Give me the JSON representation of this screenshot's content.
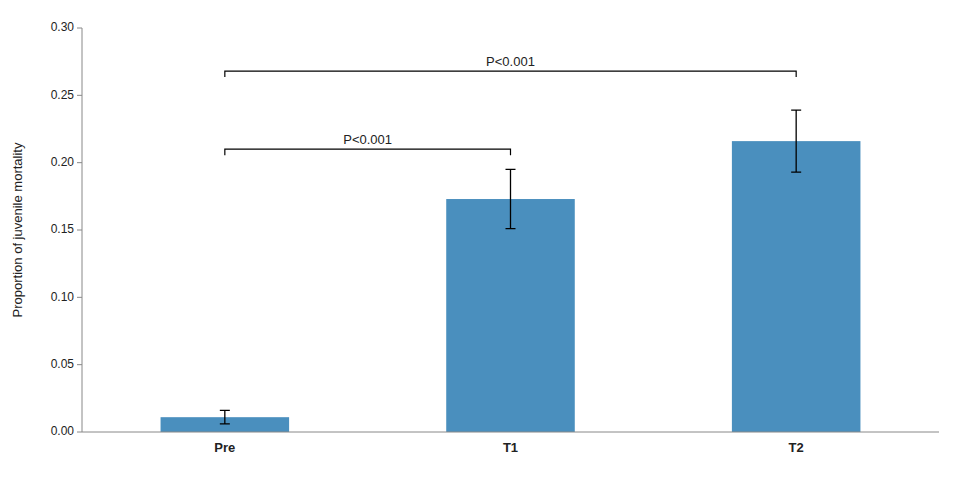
{
  "chart_data": {
    "type": "bar",
    "categories": [
      "Pre",
      "T1",
      "T2"
    ],
    "values": [
      0.011,
      0.173,
      0.216
    ],
    "errors": [
      0.005,
      0.022,
      0.023
    ],
    "color": "#4a8fbe",
    "ylabel": "Proportion of juvenile mortality",
    "ylim": [
      0,
      0.3
    ],
    "yticks": [
      {
        "value": 0,
        "label": "0.00"
      },
      0.05,
      {
        "value": 0.1,
        "label": "0.10"
      },
      0.15,
      {
        "value": 0.2,
        "label": "0.20"
      },
      0.25,
      {
        "value": 0.3,
        "label": "0.30"
      }
    ],
    "annotations": [
      {
        "text": "P<0.001",
        "from": 0,
        "to": 1,
        "y": 0.21
      },
      {
        "text": "P<0.001",
        "from": 0,
        "to": 2,
        "y": 0.268
      }
    ]
  }
}
